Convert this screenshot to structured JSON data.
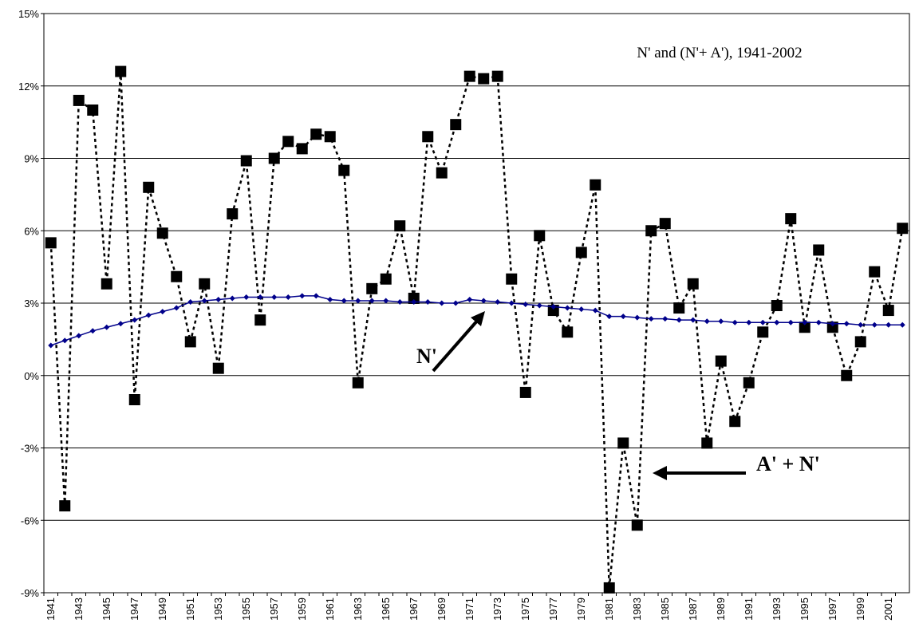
{
  "chart_data": {
    "type": "line",
    "title": "N' and (N'+ A'), 1941-2002",
    "categories": [
      "1941",
      null,
      "1943",
      null,
      "1945",
      null,
      "1947",
      null,
      "1949",
      null,
      "1951",
      null,
      "1953",
      null,
      "1955",
      null,
      "1957",
      null,
      "1959",
      null,
      "1961",
      null,
      "1963",
      null,
      "1965",
      null,
      "1967",
      null,
      "1969",
      null,
      "1971",
      null,
      "1973",
      null,
      "1975",
      null,
      "1977",
      null,
      "1979",
      null,
      "1981",
      null,
      "1983",
      null,
      "1985",
      null,
      "1987",
      null,
      "1989",
      null,
      "1991",
      null,
      "1993",
      null,
      "1995",
      null,
      "1997",
      null,
      "1999",
      null,
      "2001",
      null
    ],
    "series": [
      {
        "name": "A' + N'",
        "color": "#000000",
        "marker": "square",
        "values": [
          5.5,
          -5.4,
          11.4,
          11.0,
          3.8,
          12.6,
          -1.0,
          7.8,
          5.9,
          4.1,
          1.4,
          3.8,
          0.3,
          6.7,
          8.9,
          2.3,
          9.0,
          9.7,
          9.4,
          10.0,
          9.9,
          8.5,
          -0.3,
          3.6,
          4.0,
          6.2,
          3.2,
          9.9,
          8.4,
          10.4,
          12.4,
          12.3,
          12.4,
          4.0,
          -0.7,
          5.8,
          2.7,
          1.8,
          5.1,
          7.9,
          -8.8,
          -2.8,
          -6.2,
          6.0,
          6.3,
          2.8,
          3.8,
          -2.8,
          0.6,
          -1.9,
          -0.3,
          1.8,
          2.9,
          6.5,
          2.0,
          5.2,
          2.0,
          0.0,
          1.4,
          4.3,
          2.7,
          6.1
        ]
      },
      {
        "name": "N'",
        "color": "#00008b",
        "marker": "diamond",
        "values": [
          1.25,
          1.45,
          1.65,
          1.85,
          2.0,
          2.15,
          2.3,
          2.5,
          2.65,
          2.8,
          3.05,
          3.1,
          3.15,
          3.2,
          3.25,
          3.25,
          3.25,
          3.25,
          3.3,
          3.3,
          3.15,
          3.1,
          3.1,
          3.1,
          3.1,
          3.05,
          3.05,
          3.05,
          3.0,
          3.0,
          3.15,
          3.1,
          3.05,
          3.0,
          2.95,
          2.9,
          2.85,
          2.8,
          2.75,
          2.7,
          2.45,
          2.45,
          2.4,
          2.35,
          2.35,
          2.3,
          2.3,
          2.25,
          2.25,
          2.2,
          2.2,
          2.2,
          2.2,
          2.2,
          2.2,
          2.2,
          2.15,
          2.15,
          2.1,
          2.1,
          2.1,
          2.1
        ]
      }
    ],
    "ylim": [
      -9,
      15
    ],
    "yticks": [
      {
        "value": -9,
        "label": "-9%"
      },
      {
        "value": -6,
        "label": "-6%"
      },
      {
        "value": -3,
        "label": "-3%"
      },
      {
        "value": 0,
        "label": "0%"
      },
      {
        "value": 3,
        "label": "3%"
      },
      {
        "value": 6,
        "label": "6%"
      },
      {
        "value": 9,
        "label": "9%"
      },
      {
        "value": 12,
        "label": "12%"
      },
      {
        "value": 15,
        "label": "15%"
      }
    ],
    "grid": true
  }
}
